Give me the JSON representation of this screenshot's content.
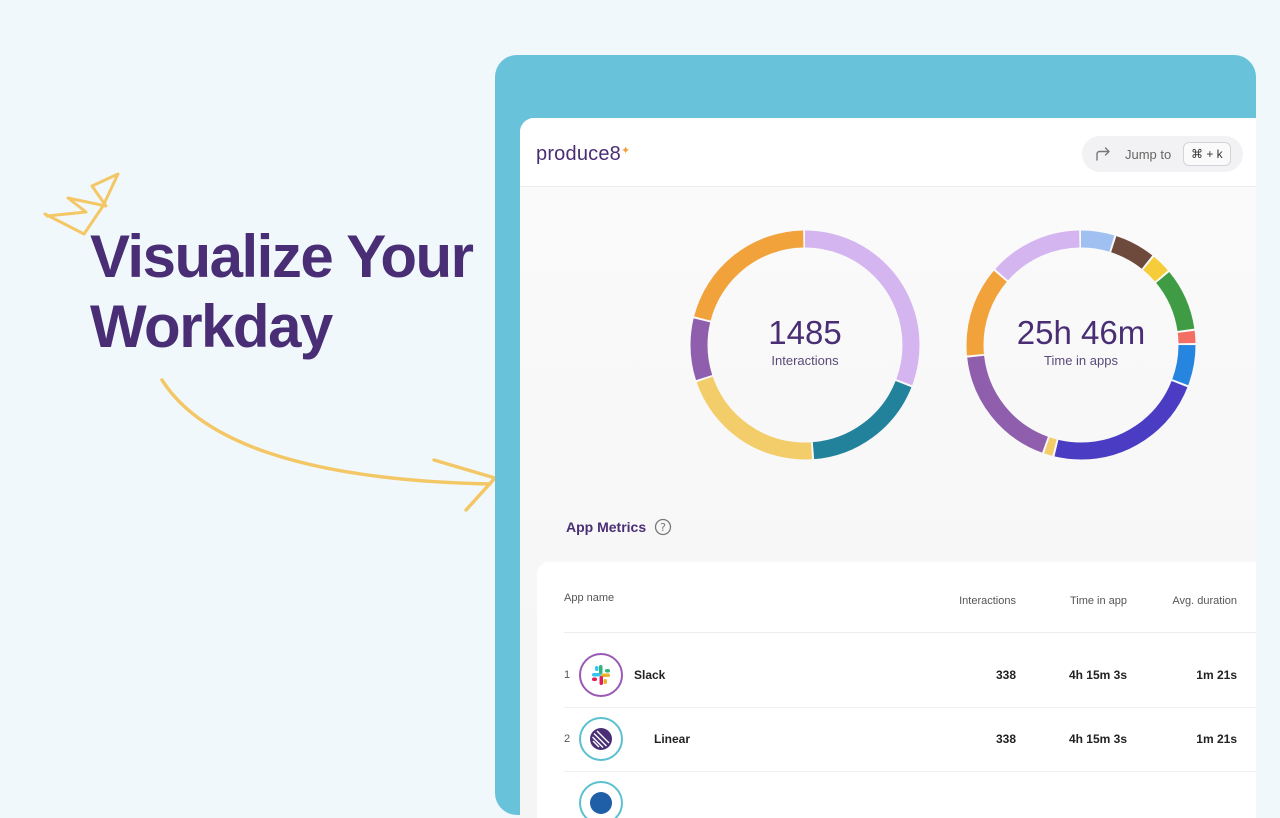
{
  "hero": {
    "line1": "Visualize Your",
    "line2": "Workday"
  },
  "header": {
    "logo": "produce8",
    "jump_label": "Jump to",
    "jump_shortcut": "⌘ + k"
  },
  "donuts": [
    {
      "value": "1485",
      "label": "Interactions",
      "segments": [
        {
          "color": "#d4b5f0",
          "share": 31
        },
        {
          "color": "#22829c",
          "share": 18
        },
        {
          "color": "#f4cd6b",
          "share": 21
        },
        {
          "color": "#8f5fad",
          "share": 9
        },
        {
          "color": "#f1a23a",
          "share": 21
        }
      ]
    },
    {
      "value": "25h 46m",
      "label": "Time in apps",
      "segments": [
        {
          "color": "#a1c0f2",
          "share": 5
        },
        {
          "color": "#6e4a3c",
          "share": 6
        },
        {
          "color": "#f6cc3a",
          "share": 3
        },
        {
          "color": "#3f9c45",
          "share": 9
        },
        {
          "color": "#f36e63",
          "share": 2
        },
        {
          "color": "#2585df",
          "share": 6
        },
        {
          "color": "#4b3dc3",
          "share": 23
        },
        {
          "color": "#f4cd6b",
          "share": 1.5
        },
        {
          "color": "#8f5fad",
          "share": 18
        },
        {
          "color": "#f1a23a",
          "share": 13
        },
        {
          "color": "#d4b5f0",
          "share": 13.5
        }
      ]
    }
  ],
  "metrics": {
    "title": "App Metrics",
    "columns": {
      "app_name": "App name",
      "interactions": "Interactions",
      "time_in_app": "Time in app",
      "avg_duration": "Avg. duration"
    },
    "rows": [
      {
        "rank": "1",
        "name": "Slack",
        "icon": "slack-icon",
        "interactions": "338",
        "time_in_app": "4h 15m 3s",
        "avg_duration": "1m 21s"
      },
      {
        "rank": "2",
        "name": "Linear",
        "icon": "linear-icon",
        "interactions": "338",
        "time_in_app": "4h 15m 3s",
        "avg_duration": "1m 21s"
      }
    ]
  }
}
